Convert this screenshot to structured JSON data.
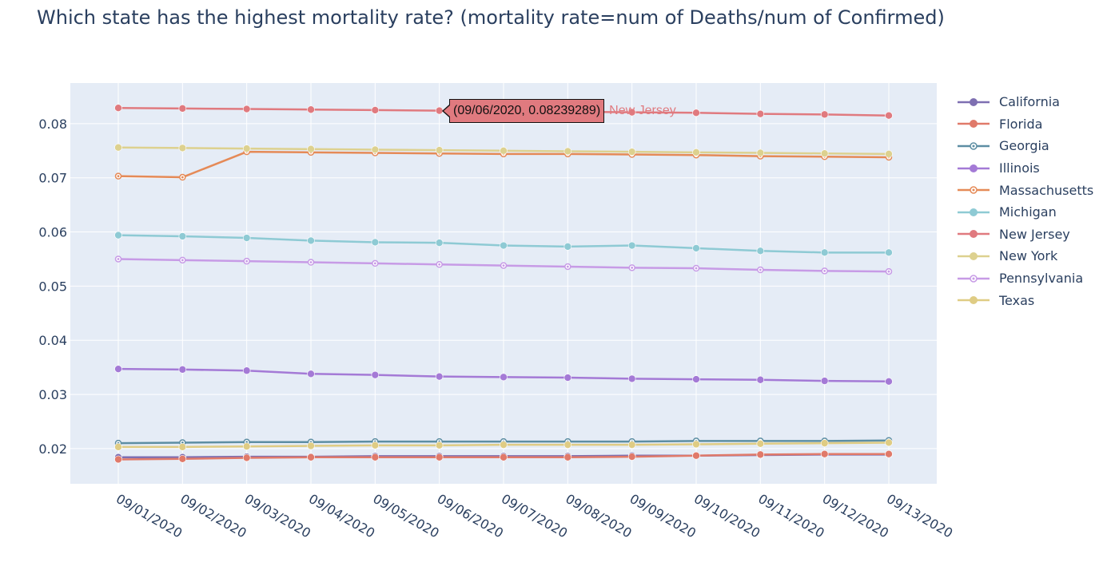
{
  "title": "Which state has the highest mortality rate? (mortality rate=num of Deaths/num of Confirmed)",
  "tooltip": {
    "text": "(09/06/2020, 0.08239289)",
    "series": "New Jersey",
    "color": "#e07a7f"
  },
  "chart_data": {
    "type": "line",
    "title": "Which state has the highest mortality rate? (mortality rate=num of Deaths/num of Confirmed)",
    "xlabel": "",
    "ylabel": "",
    "x": [
      "09/01/2020",
      "09/02/2020",
      "09/03/2020",
      "09/04/2020",
      "09/05/2020",
      "09/06/2020",
      "09/07/2020",
      "09/08/2020",
      "09/09/2020",
      "09/10/2020",
      "09/11/2020",
      "09/12/2020",
      "09/13/2020"
    ],
    "ylim": [
      0.0135,
      0.0875
    ],
    "yticks": [
      0.02,
      0.03,
      0.04,
      0.05,
      0.06,
      0.07,
      0.08
    ],
    "ytick_labels": [
      "0.02",
      "0.03",
      "0.04",
      "0.05",
      "0.06",
      "0.07",
      "0.08"
    ],
    "grid": true,
    "legend_position": "right",
    "plot_bg": "#e5ecf6",
    "series": [
      {
        "name": "California",
        "color": "#7e6fb1",
        "marker": "circle",
        "values": [
          0.0184,
          0.0184,
          0.0185,
          0.0185,
          0.0186,
          0.0186,
          0.0186,
          0.0186,
          0.0187,
          0.0187,
          0.0188,
          0.0189,
          0.0189
        ]
      },
      {
        "name": "Florida",
        "color": "#e07a6a",
        "marker": "circle",
        "values": [
          0.018,
          0.0181,
          0.0183,
          0.0184,
          0.0184,
          0.0184,
          0.0184,
          0.0184,
          0.0185,
          0.0187,
          0.0189,
          0.019,
          0.019
        ]
      },
      {
        "name": "Georgia",
        "color": "#5d8ea3",
        "marker": "circle-open-dot",
        "values": [
          0.021,
          0.0211,
          0.0212,
          0.0212,
          0.0213,
          0.0213,
          0.0213,
          0.0213,
          0.0213,
          0.0214,
          0.0214,
          0.0214,
          0.0215
        ]
      },
      {
        "name": "Illinois",
        "color": "#a47ad6",
        "marker": "circle",
        "values": [
          0.0347,
          0.0346,
          0.0344,
          0.0338,
          0.0336,
          0.0333,
          0.0332,
          0.0331,
          0.0329,
          0.0328,
          0.0327,
          0.0325,
          0.0324
        ]
      },
      {
        "name": "Massachusetts",
        "color": "#e58a57",
        "marker": "circle-open-dot",
        "values": [
          0.0703,
          0.0701,
          0.0748,
          0.0747,
          0.0746,
          0.0745,
          0.0744,
          0.0744,
          0.0743,
          0.0742,
          0.074,
          0.0739,
          0.0738
        ]
      },
      {
        "name": "Michigan",
        "color": "#8ecad4",
        "marker": "circle",
        "values": [
          0.0594,
          0.0592,
          0.0589,
          0.0584,
          0.0581,
          0.058,
          0.0575,
          0.0573,
          0.0575,
          0.057,
          0.0565,
          0.0562,
          0.0562
        ]
      },
      {
        "name": "New Jersey",
        "color": "#e07a7f",
        "marker": "circle",
        "values": [
          0.0829,
          0.0828,
          0.0827,
          0.0826,
          0.0825,
          0.0824,
          0.0823,
          0.0822,
          0.0821,
          0.082,
          0.0818,
          0.0817,
          0.0815
        ]
      },
      {
        "name": "New York",
        "color": "#ddd18f",
        "marker": "circle",
        "values": [
          0.0756,
          0.0755,
          0.0754,
          0.0753,
          0.0752,
          0.0751,
          0.075,
          0.0749,
          0.0748,
          0.0747,
          0.0746,
          0.0745,
          0.0744
        ]
      },
      {
        "name": "Pennsylvania",
        "color": "#c79be6",
        "marker": "circle-open-dot",
        "values": [
          0.055,
          0.0548,
          0.0546,
          0.0544,
          0.0542,
          0.054,
          0.0538,
          0.0536,
          0.0534,
          0.0533,
          0.053,
          0.0528,
          0.0527
        ]
      },
      {
        "name": "Texas",
        "color": "#dfcc84",
        "marker": "circle",
        "values": [
          0.0203,
          0.0203,
          0.0204,
          0.0205,
          0.0206,
          0.0206,
          0.0207,
          0.0207,
          0.0207,
          0.0208,
          0.0209,
          0.021,
          0.0211
        ]
      }
    ]
  }
}
